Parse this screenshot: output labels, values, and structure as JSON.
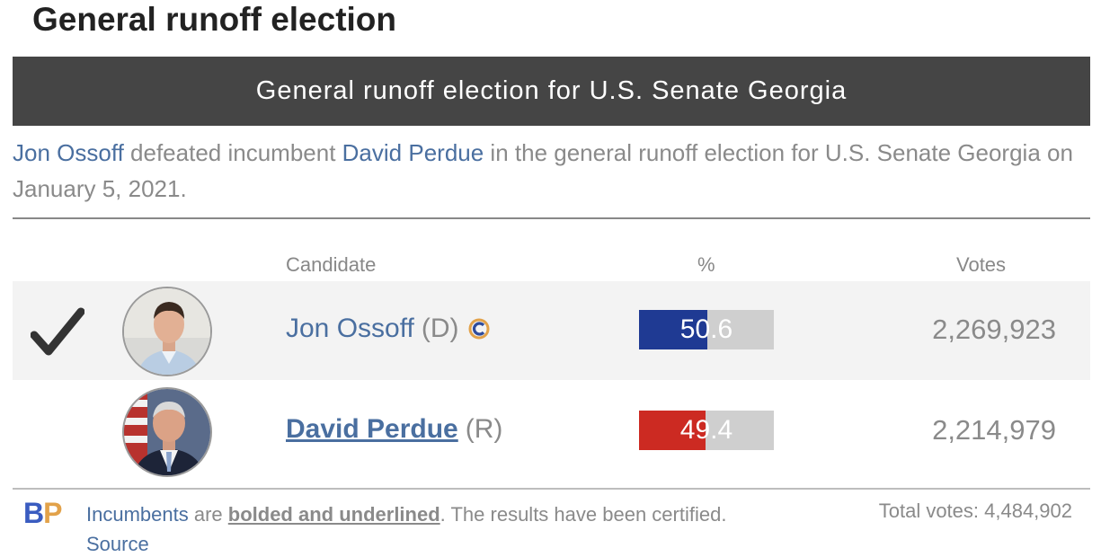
{
  "page_title": "General runoff election",
  "banner_title": "General runoff election for U.S. Senate Georgia",
  "summary": {
    "winner": "Jon Ossoff",
    "text1": " defeated incumbent ",
    "loser": "David Perdue",
    "text2": " in the general runoff election for U.S. Senate Georgia on January 5, 2021."
  },
  "table": {
    "headers": {
      "candidate": "Candidate",
      "percent": "%",
      "votes": "Votes"
    },
    "rows": [
      {
        "name": "Jon Ossoff",
        "party": "(D)",
        "percent": 50.6,
        "percent_label": "50.6",
        "votes": "2,269,923",
        "winner": true,
        "incumbent": false,
        "bar_color": "#1f3a93"
      },
      {
        "name": "David Perdue",
        "party": "(R)",
        "percent": 49.4,
        "percent_label": "49.4",
        "votes": "2,214,979",
        "winner": false,
        "incumbent": true,
        "bar_color": "#cc2a22"
      }
    ]
  },
  "footer": {
    "logo_b": "B",
    "logo_p": "P",
    "incumbents_link": "Incumbents",
    "text_are": " are ",
    "bold_text": "bolded and underlined",
    "text_rest": ". The results have been certified. ",
    "source_link": "Source",
    "total_votes": "Total votes: 4,484,902"
  },
  "icons": {
    "winner": "checkmark-icon",
    "badge": "campaign-badge-icon"
  }
}
